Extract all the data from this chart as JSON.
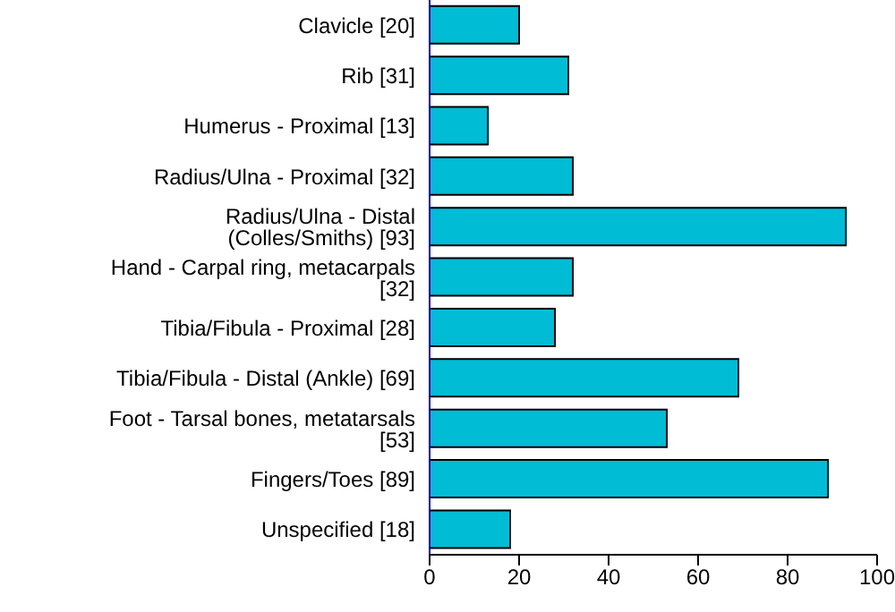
{
  "chart_data": {
    "type": "bar",
    "orientation": "horizontal",
    "categories": [
      "Clavicle [20]",
      "Rib [31]",
      "Humerus - Proximal [13]",
      "Radius/Ulna - Proximal [32]",
      "Radius/Ulna - Distal (Colles/Smiths) [93]",
      "Hand - Carpal ring, metacarpals [32]",
      "Tibia/Fibula - Proximal [28]",
      "Tibia/Fibula - Distal (Ankle) [69]",
      "Foot - Tarsal bones, metatarsals [53]",
      "Fingers/Toes [89]",
      "Unspecified [18]"
    ],
    "values": [
      20,
      31,
      13,
      32,
      93,
      32,
      28,
      69,
      53,
      89,
      18
    ],
    "color": "#00bcd4",
    "xlim": [
      0,
      100
    ],
    "xticks": [
      0,
      20,
      40,
      60,
      80,
      100
    ],
    "grid": false,
    "legend": false
  }
}
